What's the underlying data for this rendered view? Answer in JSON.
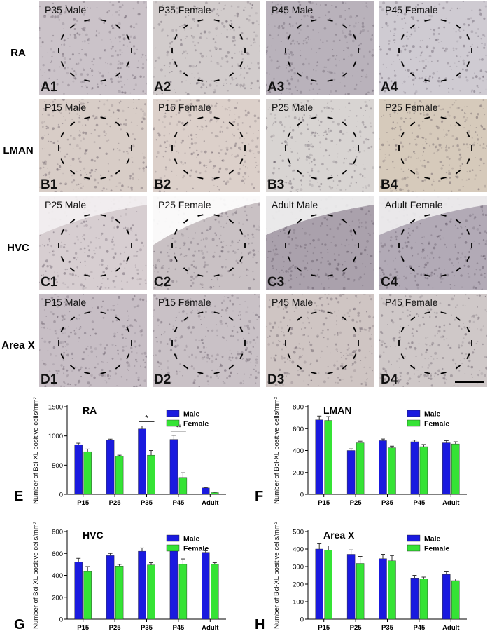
{
  "rows": [
    {
      "label": "RA",
      "tiles": [
        {
          "caption": "P35 Male",
          "id": "A1",
          "bg": "#cbc3c9"
        },
        {
          "caption": "P35 Female",
          "id": "A2",
          "bg": "#d2cccc"
        },
        {
          "caption": "P45 Male",
          "id": "A3",
          "bg": "#b9b2bb"
        },
        {
          "caption": "P45 Female",
          "id": "A4",
          "bg": "#cfcbd2"
        }
      ]
    },
    {
      "label": "LMAN",
      "tiles": [
        {
          "caption": "P15 Male",
          "id": "B1",
          "bg": "#d8cdc7"
        },
        {
          "caption": "P15 Female",
          "id": "B2",
          "bg": "#dcd0ca"
        },
        {
          "caption": "P25 Male",
          "id": "B3",
          "bg": "#d8d4d2"
        },
        {
          "caption": "P25 Female",
          "id": "B4",
          "bg": "#d6cabb"
        }
      ]
    },
    {
      "label": "HVC",
      "tiles": [
        {
          "caption": "P25 Male",
          "id": "C1",
          "bg": "#d7ced1"
        },
        {
          "caption": "P25 Female",
          "id": "C2",
          "bg": "#c9c1c4"
        },
        {
          "caption": "Adult Male",
          "id": "C3",
          "bg": "#aaa1ac"
        },
        {
          "caption": "Adult Female",
          "id": "C4",
          "bg": "#b2aab6"
        }
      ]
    },
    {
      "label": "Area X",
      "tiles": [
        {
          "caption": "P15 Male",
          "id": "D1",
          "bg": "#c7bec5"
        },
        {
          "caption": "P15 Female",
          "id": "D2",
          "bg": "#c9c1c6"
        },
        {
          "caption": "P45 Male",
          "id": "D3",
          "bg": "#cfc5c3"
        },
        {
          "caption": "P45 Female",
          "id": "D4",
          "bg": "#cfc8c8"
        }
      ]
    }
  ],
  "colors": {
    "male": "#1a1adf",
    "female": "#35e335",
    "error": "#333333"
  },
  "charts": [
    {
      "panel": "E",
      "chart_data": {
        "type": "bar",
        "title": "RA",
        "ylabel": "Number of Bcl-XL positive cells/mm²",
        "categories": [
          "P15",
          "P25",
          "P35",
          "P45",
          "Adult"
        ],
        "ylim": [
          0,
          1500
        ],
        "yticks": [
          0,
          500,
          1000,
          1500
        ],
        "legend": "top-right",
        "series": [
          {
            "name": "Male",
            "values": [
              850,
              930,
              1120,
              940,
              110
            ],
            "errors": [
              25,
              15,
              50,
              70,
              10
            ]
          },
          {
            "name": "Female",
            "values": [
              730,
              650,
              670,
              290,
              30
            ],
            "errors": [
              45,
              20,
              80,
              80,
              8
            ]
          }
        ],
        "significance": [
          {
            "category": "P35",
            "label": "*"
          },
          {
            "category": "P45",
            "label": "**"
          }
        ]
      }
    },
    {
      "panel": "F",
      "chart_data": {
        "type": "bar",
        "title": "LMAN",
        "ylabel": "Number of Bcl-XL positive cells/mm²",
        "categories": [
          "P15",
          "P25",
          "P35",
          "P45",
          "Adult"
        ],
        "ylim": [
          0,
          800
        ],
        "yticks": [
          0,
          200,
          400,
          600,
          800
        ],
        "legend": "top-right",
        "series": [
          {
            "name": "Male",
            "values": [
              680,
              400,
              490,
              480,
              470
            ],
            "errors": [
              35,
              15,
              15,
              15,
              20
            ]
          },
          {
            "name": "Female",
            "values": [
              675,
              470,
              425,
              435,
              460
            ],
            "errors": [
              35,
              15,
              15,
              20,
              20
            ]
          }
        ],
        "significance": []
      }
    },
    {
      "panel": "G",
      "chart_data": {
        "type": "bar",
        "title": "HVC",
        "ylabel": "Number of Bcl-XL positive cells/mm²",
        "categories": [
          "P15",
          "P25",
          "P35",
          "P45",
          "Adult"
        ],
        "ylim": [
          0,
          800
        ],
        "yticks": [
          0,
          200,
          400,
          600,
          800
        ],
        "legend": "top-right",
        "series": [
          {
            "name": "Male",
            "values": [
              520,
              580,
              620,
              625,
              610
            ],
            "errors": [
              35,
              20,
              30,
              30,
              15
            ]
          },
          {
            "name": "Female",
            "values": [
              435,
              485,
              495,
              500,
              500
            ],
            "errors": [
              45,
              15,
              20,
              50,
              15
            ]
          }
        ],
        "significance": []
      }
    },
    {
      "panel": "H",
      "chart_data": {
        "type": "bar",
        "title": "Area X",
        "ylabel": "Number of Bcl-XL positive cells/mm²",
        "categories": [
          "P15",
          "P25",
          "P35",
          "P45",
          "Adult"
        ],
        "ylim": [
          0,
          500
        ],
        "yticks": [
          0,
          100,
          200,
          300,
          400,
          500
        ],
        "legend": "top-right",
        "series": [
          {
            "name": "Male",
            "values": [
              400,
              370,
              345,
              235,
              255
            ],
            "errors": [
              30,
              25,
              25,
              15,
              15
            ]
          },
          {
            "name": "Female",
            "values": [
              393,
              318,
              333,
              230,
              220
            ],
            "errors": [
              25,
              40,
              30,
              10,
              10
            ]
          }
        ],
        "significance": []
      }
    }
  ]
}
